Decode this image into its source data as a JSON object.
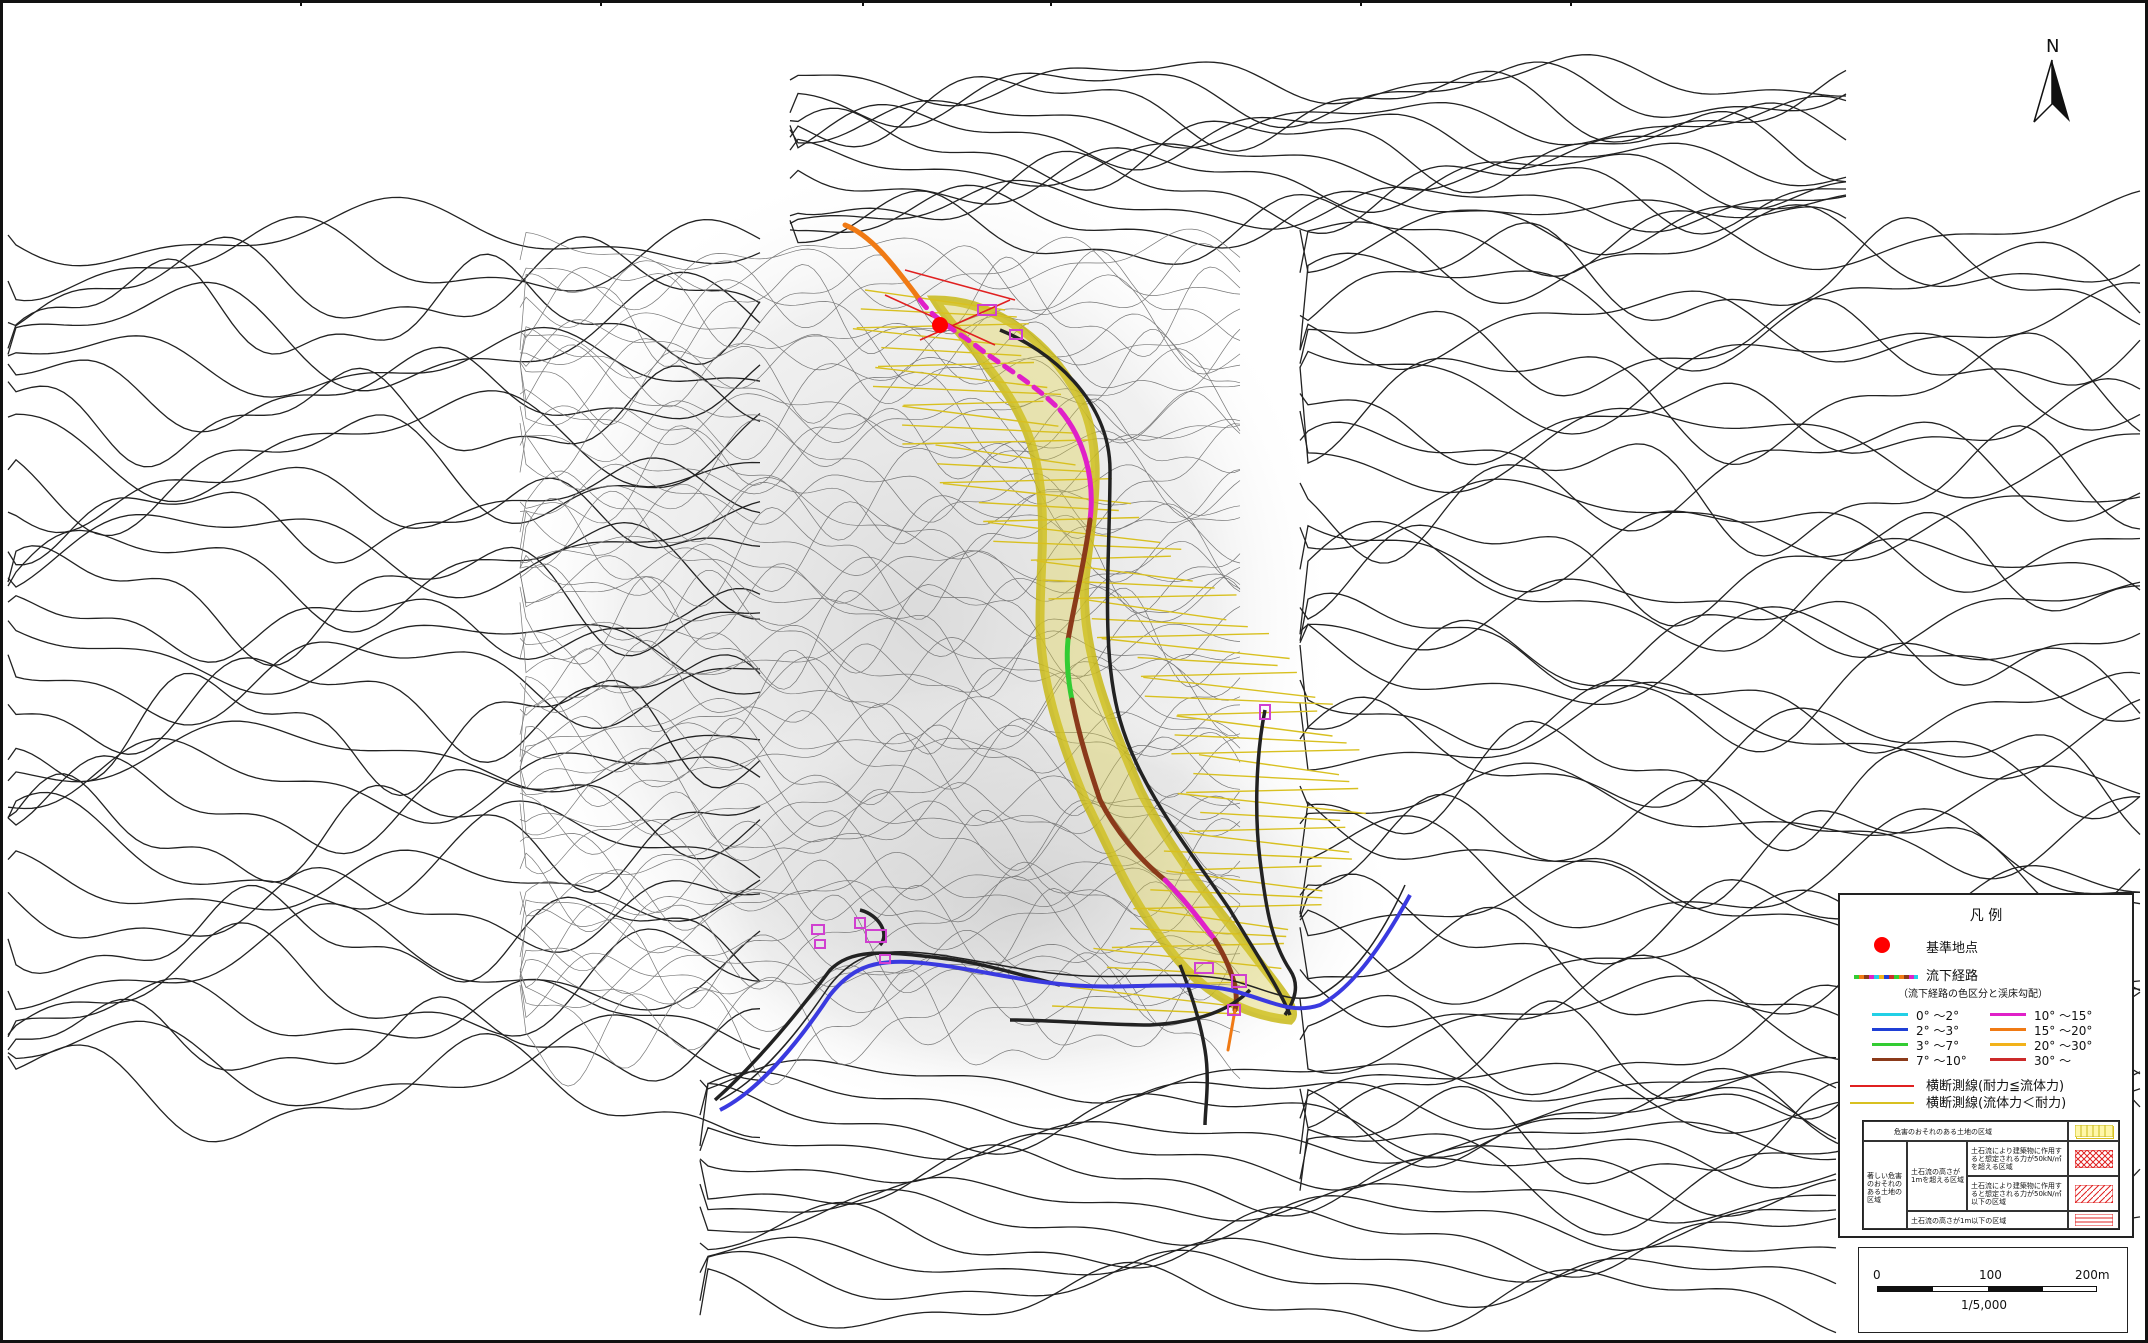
{
  "legend": {
    "title": "凡 例",
    "reference_point": {
      "label": "基準地点",
      "color": "#ff0000"
    },
    "flow_path": {
      "label": "流下経路",
      "sublabel": "（流下経路の色区分と渓床勾配）",
      "slope_classes": [
        {
          "label": "0°  ～2°",
          "color": "#22d0e6"
        },
        {
          "label": "2°  ～3°",
          "color": "#1f3fd6"
        },
        {
          "label": "3°  ～7°",
          "color": "#33cc33"
        },
        {
          "label": "7°  ～10°",
          "color": "#8b3a1a"
        },
        {
          "label": "10°  ～15°",
          "color": "#e020c8"
        },
        {
          "label": "15°  ～20°",
          "color": "#f07a14"
        },
        {
          "label": "20°  ～30°",
          "color": "#f2b21a"
        },
        {
          "label": "30°  ～",
          "color": "#cc2a2a"
        }
      ]
    },
    "cross_sections": [
      {
        "label": "横断測線(耐力≦流体力)",
        "color": "#e02020"
      },
      {
        "label": "横断測線(流体力＜耐力)",
        "color": "#d8c020"
      }
    ],
    "hazard_table": {
      "header": "危害のおそれのある土地の区域",
      "left_group": "著しい危害のおそれのある土地の区域",
      "mid_label": "土石流の高さが1mを超える区域",
      "row1": "土石流により建築物に作用すると想定される力が50kN/㎡を超える区域",
      "row2": "土石流により建築物に作用すると想定される力が50kN/㎡以下の区域",
      "row3": "土石流の高さが1m以下の区域"
    }
  },
  "north_arrow": {
    "label": "N"
  },
  "scale": {
    "ticks": [
      "0",
      "100",
      "200m"
    ],
    "ratio": "1/5,000"
  },
  "colors": {
    "river": "#3a3ae0",
    "road": "#222222",
    "hazard_fill": "#cfc22a",
    "buildings": "#d040d0"
  }
}
